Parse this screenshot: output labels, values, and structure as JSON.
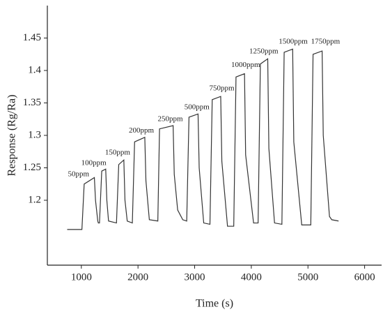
{
  "chart_data": {
    "type": "line",
    "xlabel": "Time (s)",
    "ylabel": "Response (Rg/Ra)",
    "xlim": [
      400,
      6300
    ],
    "ylim": [
      1.1,
      1.5
    ],
    "xticks": [
      1000,
      2000,
      3000,
      4000,
      5000,
      6000
    ],
    "yticks": [
      1.2,
      1.25,
      1.3,
      1.35,
      1.4,
      1.45
    ],
    "series": [
      {
        "color": "#333333",
        "x": [
          750,
          1010,
          1050,
          1230,
          1250,
          1290,
          1300,
          1320,
          1360,
          1430,
          1450,
          1480,
          1620,
          1660,
          1750,
          1770,
          1810,
          1900,
          1940,
          2120,
          2140,
          2200,
          2350,
          2380,
          2620,
          2640,
          2700,
          2790,
          2860,
          2900,
          3060,
          3080,
          3160,
          3270,
          3310,
          3460,
          3480,
          3580,
          3690,
          3730,
          3880,
          3900,
          4040,
          4120,
          4160,
          4290,
          4310,
          4410,
          4540,
          4580,
          4730,
          4750,
          4890,
          5050,
          5090,
          5250,
          5270,
          5380,
          5420,
          5540
        ],
        "values": [
          1.155,
          1.155,
          1.225,
          1.235,
          1.2,
          1.168,
          1.165,
          1.165,
          1.245,
          1.248,
          1.2,
          1.168,
          1.165,
          1.255,
          1.262,
          1.2,
          1.168,
          1.165,
          1.29,
          1.297,
          1.23,
          1.17,
          1.168,
          1.31,
          1.315,
          1.24,
          1.185,
          1.17,
          1.168,
          1.328,
          1.333,
          1.25,
          1.165,
          1.163,
          1.355,
          1.36,
          1.26,
          1.16,
          1.16,
          1.39,
          1.395,
          1.27,
          1.165,
          1.165,
          1.41,
          1.418,
          1.28,
          1.165,
          1.163,
          1.428,
          1.433,
          1.29,
          1.162,
          1.162,
          1.425,
          1.43,
          1.3,
          1.175,
          1.17,
          1.168
        ]
      }
    ],
    "annotations": [
      {
        "text": "50ppm",
        "x": 950,
        "y": 1.24
      },
      {
        "text": "100ppm",
        "x": 1220,
        "y": 1.257
      },
      {
        "text": "150ppm",
        "x": 1640,
        "y": 1.273
      },
      {
        "text": "200ppm",
        "x": 2060,
        "y": 1.307
      },
      {
        "text": "250ppm",
        "x": 2570,
        "y": 1.325
      },
      {
        "text": "500ppm",
        "x": 3040,
        "y": 1.343
      },
      {
        "text": "750ppm",
        "x": 3480,
        "y": 1.372
      },
      {
        "text": "1000ppm",
        "x": 3900,
        "y": 1.408
      },
      {
        "text": "1250ppm",
        "x": 4220,
        "y": 1.429
      },
      {
        "text": "1500ppm",
        "x": 4740,
        "y": 1.444
      },
      {
        "text": "1750ppm",
        "x": 5310,
        "y": 1.444
      }
    ]
  }
}
